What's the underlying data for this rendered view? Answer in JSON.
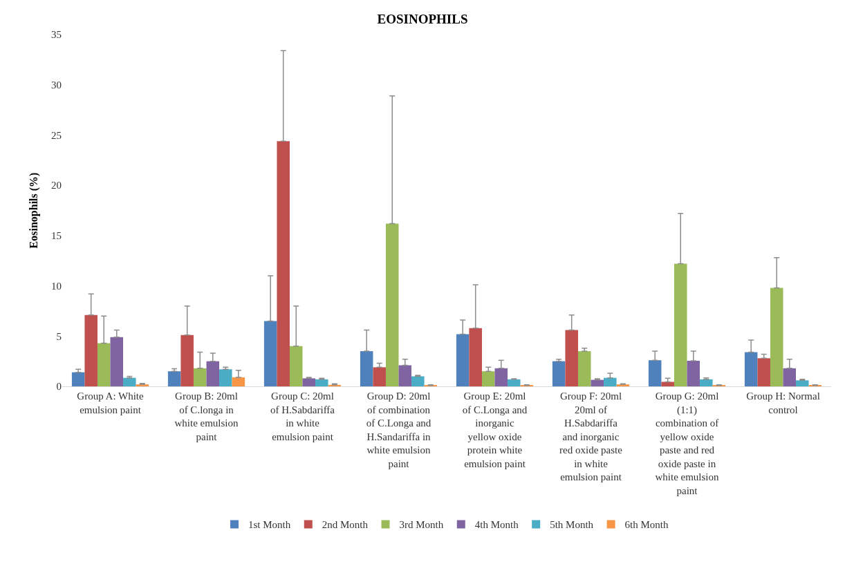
{
  "chart_data": {
    "type": "bar",
    "title": "EOSINOPHILS",
    "ylabel": "Eosinophils (%)",
    "categories": [
      "Group A: White emulsion paint",
      "Group B: 20ml of C.longa in white emulsion paint",
      "Group C: 20ml of H.Sabdariffa in white emulsion paint",
      "Group D: 20ml of combination of C.Longa and H.Sandariffa in white emulsion paint",
      "Group E: 20ml of C.Longa and inorganic yellow oxide protein white emulsion paint",
      "Group F: 20ml 20ml of H.Sabdariffa and inorganic red oxide paste in white emulsion paint",
      "Group G: 20ml (1:1) combination of yellow oxide paste and red oxide paste in white emulsion paint",
      "Group H: Normal control"
    ],
    "series": [
      {
        "name": "1st Month",
        "color": "#4f81bd",
        "values": [
          1.4,
          1.5,
          6.5,
          3.5,
          5.2,
          2.5,
          2.6,
          3.4
        ],
        "errors": [
          [
            1.4,
            1.7
          ],
          [
            1.5,
            1.75
          ],
          [
            6.5,
            11.0
          ],
          [
            3.5,
            5.6
          ],
          [
            5.2,
            6.6
          ],
          [
            2.5,
            2.7
          ],
          [
            2.6,
            3.5
          ],
          [
            3.4,
            4.6
          ]
        ]
      },
      {
        "name": "2nd Month",
        "color": "#c0504d",
        "values": [
          7.1,
          5.1,
          24.4,
          1.9,
          5.8,
          5.6,
          0.45,
          2.8
        ],
        "errors": [
          [
            7.1,
            9.2
          ],
          [
            5.1,
            8.0
          ],
          [
            24.4,
            33.4
          ],
          [
            1.9,
            2.3
          ],
          [
            5.8,
            10.1
          ],
          [
            5.6,
            7.1
          ],
          [
            0.45,
            0.8
          ],
          [
            2.8,
            3.2
          ]
        ]
      },
      {
        "name": "3rd Month",
        "color": "#9bbb59",
        "values": [
          4.3,
          1.8,
          4.0,
          16.2,
          1.5,
          3.5,
          12.2,
          9.8
        ],
        "errors": [
          [
            4.3,
            7.0
          ],
          [
            1.8,
            3.4
          ],
          [
            4.0,
            8.0
          ],
          [
            16.2,
            28.9
          ],
          [
            1.5,
            1.9
          ],
          [
            3.5,
            3.8
          ],
          [
            12.2,
            17.2
          ],
          [
            9.8,
            12.8
          ]
        ]
      },
      {
        "name": "4th Month",
        "color": "#8064a2",
        "values": [
          4.9,
          2.5,
          0.8,
          2.1,
          1.8,
          0.65,
          2.55,
          1.8
        ],
        "errors": [
          [
            4.9,
            5.6
          ],
          [
            2.5,
            3.3
          ],
          [
            0.8,
            0.9
          ],
          [
            2.1,
            2.7
          ],
          [
            1.8,
            2.6
          ],
          [
            0.65,
            0.75
          ],
          [
            2.55,
            3.5
          ],
          [
            1.8,
            2.7
          ]
        ]
      },
      {
        "name": "5th Month",
        "color": "#4bacc6",
        "values": [
          0.85,
          1.7,
          0.7,
          1.0,
          0.7,
          0.85,
          0.7,
          0.6
        ],
        "errors": [
          [
            0.85,
            1.0
          ],
          [
            1.7,
            1.9
          ],
          [
            0.7,
            0.8
          ],
          [
            1.0,
            1.1
          ],
          [
            0.7,
            0.75
          ],
          [
            0.85,
            1.3
          ],
          [
            0.7,
            0.85
          ],
          [
            0.6,
            0.7
          ]
        ]
      },
      {
        "name": "6th Month",
        "color": "#f79646",
        "values": [
          0.2,
          0.9,
          0.15,
          0.1,
          0.1,
          0.2,
          0.1,
          0.1
        ],
        "errors": [
          [
            0.2,
            0.3
          ],
          [
            0.9,
            1.6
          ],
          [
            0.15,
            0.25
          ],
          [
            0.1,
            0.15
          ],
          [
            0.1,
            0.15
          ],
          [
            0.2,
            0.25
          ],
          [
            0.1,
            0.15
          ],
          [
            0.1,
            0.15
          ]
        ]
      }
    ],
    "ylim": [
      0,
      35
    ],
    "yticks": [
      0,
      5,
      10,
      15,
      20,
      25,
      30,
      35
    ],
    "grid": false,
    "legend": "bottom"
  }
}
